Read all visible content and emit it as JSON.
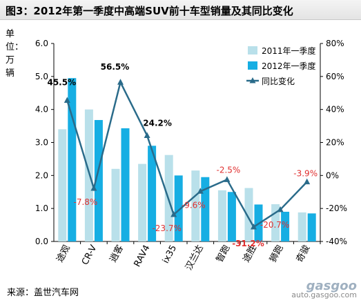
{
  "header": {
    "title": "图3：2012年第一季度中高端SUV前十车型销量及其同比变化"
  },
  "unit_label": "单位：万辆",
  "source": "来源：盖世汽车网",
  "watermark": {
    "logo": "gasgoo",
    "url": "auto.gasgoo.com"
  },
  "chart_data": {
    "type": "bar",
    "title": "2012年第一季度中高端SUV前十车型销量及其同比变化",
    "categories": [
      "途观",
      "CR-V",
      "逍客",
      "RAV4",
      "ix35",
      "汉兰达",
      "智跑",
      "途胜",
      "狮跑",
      "奇骏"
    ],
    "series": [
      {
        "name": "2011年一季度",
        "type": "bar",
        "axis": "left",
        "color": "#b9e0ea",
        "values": [
          3.4,
          4.0,
          2.2,
          2.35,
          2.62,
          2.15,
          1.55,
          1.62,
          1.13,
          0.88
        ]
      },
      {
        "name": "2012年一季度",
        "type": "bar",
        "axis": "left",
        "color": "#16aee3",
        "values": [
          4.95,
          3.68,
          3.43,
          2.9,
          2.0,
          1.95,
          1.5,
          1.12,
          0.9,
          0.85
        ]
      },
      {
        "name": "同比变化",
        "type": "line",
        "axis": "right",
        "color": "#2a6b8a",
        "values": [
          45.5,
          -7.8,
          56.5,
          24.2,
          -23.7,
          -9.6,
          -2.5,
          -31.2,
          -20.7,
          -3.9
        ],
        "labels": [
          "45.5%",
          "-7.8%",
          "56.5%",
          "24.2%",
          "-23.7%",
          "-9.6%",
          "-2.5%",
          "-31.2%",
          "-20.7%",
          "-3.9%"
        ]
      }
    ],
    "y_left": {
      "min": 0,
      "max": 6,
      "ticks": [
        "0.0",
        "1.0",
        "2.0",
        "3.0",
        "4.0",
        "5.0",
        "6.0"
      ]
    },
    "y_right": {
      "min": -40,
      "max": 80,
      "ticks": [
        "-40%",
        "-20%",
        "0%",
        "20%",
        "40%",
        "60%",
        "80%"
      ]
    },
    "grid": false,
    "legend_position": "top-right",
    "negative_label_color": "#e03030",
    "positive_label_color": "#000000"
  }
}
